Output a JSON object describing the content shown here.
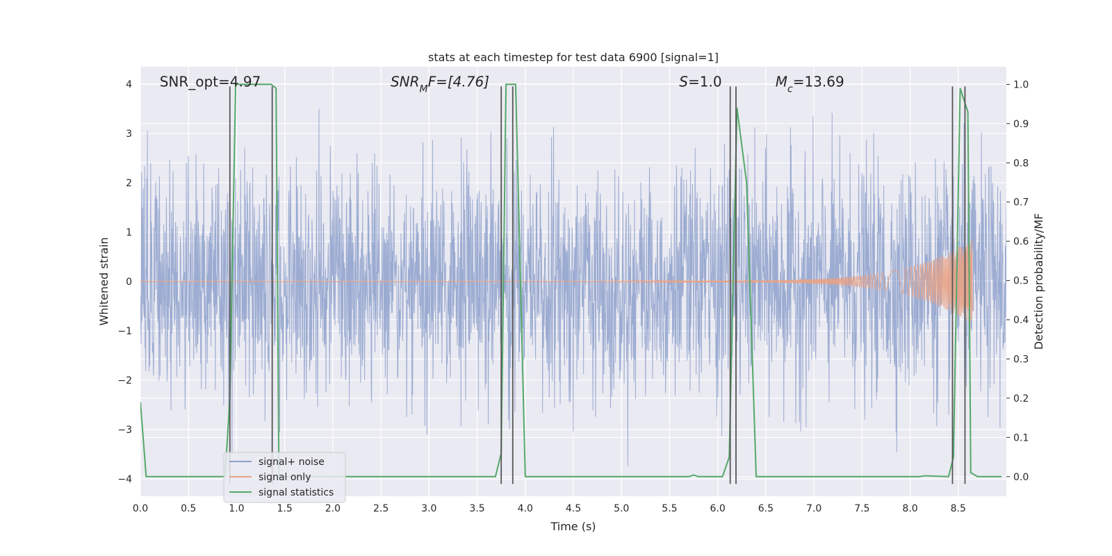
{
  "chart_data": {
    "type": "line",
    "title": "stats at each timestep for test data 6900 [signal=1]",
    "xlabel": "Time (s)",
    "ylabel_left": "Whitened strain",
    "ylabel_right": "Detection probability/MF",
    "xlim": [
      0,
      9
    ],
    "ylim_left": [
      -4.35,
      4.35
    ],
    "ylim_right": [
      -0.05,
      1.045
    ],
    "x_ticks": [
      0.0,
      0.5,
      1.0,
      1.5,
      2.0,
      2.5,
      3.0,
      3.5,
      4.0,
      4.5,
      5.0,
      5.5,
      6.0,
      6.5,
      7.0,
      7.5,
      8.0,
      8.5
    ],
    "y_left_ticks": [
      -4,
      -3,
      -2,
      -1,
      0,
      1,
      2,
      3,
      4
    ],
    "y_right_ticks": [
      0.0,
      0.1,
      0.2,
      0.3,
      0.4,
      0.5,
      0.6,
      0.7,
      0.8,
      0.9,
      1.0
    ],
    "grid": true,
    "legend_placement": "lower-left",
    "colors": {
      "noise": "#8da0cb",
      "signal": "#e8a285",
      "stats": "#55a868",
      "vline": "#555555",
      "background": "#eaeaf2",
      "grid": "#ffffff"
    },
    "annotations": [
      {
        "id": "snr-opt",
        "prefix": "SNR_opt",
        "sub": "",
        "suffix": "=4.97",
        "italic": false,
        "x": 0.2
      },
      {
        "id": "snr-mf",
        "prefix": "SNR",
        "sub": "M",
        "suffix": "F=[4.76]",
        "italic": true,
        "x": 2.6
      },
      {
        "id": "s-stat",
        "prefix": "S",
        "sub": "",
        "suffix": "=1.0",
        "italic": true,
        "x": 5.6
      },
      {
        "id": "mc",
        "prefix": "M",
        "sub": "c",
        "suffix": "=13.69",
        "italic": true,
        "x": 6.6
      }
    ],
    "annotation_y": 4.05,
    "series": [
      {
        "name": "signal+ noise",
        "kind": "noise",
        "amplitude": 3.5
      },
      {
        "name": "signal only",
        "kind": "chirp",
        "start": 4.8,
        "end": 8.65,
        "peak": 0.85
      },
      {
        "name": "signal statistics",
        "kind": "stats",
        "x": [
          0.0,
          0.06,
          0.12,
          0.2,
          0.5,
          0.88,
          0.93,
          0.99,
          1.0,
          1.3,
          1.36,
          1.41,
          1.44,
          1.5,
          2.0,
          2.5,
          3.0,
          3.5,
          3.69,
          3.75,
          3.8,
          3.9,
          4.0,
          4.1,
          4.2,
          5.0,
          5.7,
          5.75,
          5.8,
          6.05,
          6.12,
          6.2,
          6.3,
          6.4,
          7.0,
          8.1,
          8.15,
          8.4,
          8.45,
          8.52,
          8.6,
          8.63,
          8.7,
          8.8,
          8.95
        ],
        "y": [
          0.19,
          0.0,
          0.0,
          0.0,
          0.0,
          0.0,
          0.2,
          1.0,
          1.0,
          1.0,
          1.0,
          0.99,
          0.0,
          0.0,
          0.0,
          0.0,
          0.0,
          0.0,
          0.0,
          0.06,
          1.0,
          1.0,
          0.0,
          0.0,
          0.0,
          0.0,
          0.0,
          0.004,
          0.0,
          0.0,
          0.05,
          0.94,
          0.75,
          0.0,
          0.0,
          0.0,
          0.002,
          0.0,
          0.05,
          0.99,
          0.93,
          0.01,
          0.0,
          0.0,
          0.0
        ]
      }
    ],
    "vlines": [
      0.93,
      1.37,
      3.75,
      3.87,
      6.13,
      6.19,
      8.44,
      8.57
    ],
    "vline_range": [
      -4.1,
      3.95
    ]
  }
}
